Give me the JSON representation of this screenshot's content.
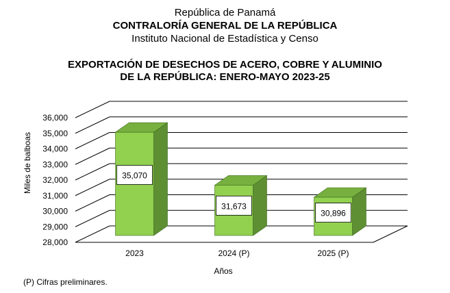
{
  "header": {
    "line1": "República de Panamá",
    "line2": "CONTRALORÍA GENERAL DE LA REPÚBLICA",
    "line3": "Instituto  Nacional de Estadística y Censo"
  },
  "footnote": "(P) Cifras  preliminares.",
  "colors": {
    "bar_front": "#92d050",
    "bar_side": "#5e8f33",
    "bar_top": "#77b03f",
    "label_box": "#ffffff",
    "grid": "#000000"
  },
  "chart_data": {
    "type": "bar",
    "title": "EXPORTACIÓN DE DESECHOS DE ACERO, COBRE Y ALUMINIO DE LA REPÚBLICA: ENERO-MAYO 2023-25",
    "title_lines": [
      "EXPORTACIÓN DE DESECHOS DE ACERO, COBRE Y ALUMINIO",
      "DE LA REPÚBLICA: ENERO-MAYO 2023-25"
    ],
    "categories": [
      "2023",
      "2024 (P)",
      "2025 (P)"
    ],
    "values": [
      35070,
      31673,
      30896
    ],
    "value_labels": [
      "35,070",
      "31,673",
      "30,896"
    ],
    "xlabel": "Años",
    "ylabel": "Miles de balboas",
    "ylim": [
      28000,
      36000
    ],
    "yticks": [
      28000,
      29000,
      30000,
      31000,
      32000,
      33000,
      34000,
      35000,
      36000
    ],
    "ytick_labels": [
      "28,000",
      "29,000",
      "30,000",
      "31,000",
      "32,000",
      "33,000",
      "34,000",
      "35,000",
      "36,000"
    ],
    "grid": true,
    "three_d": true,
    "legend": "none"
  }
}
